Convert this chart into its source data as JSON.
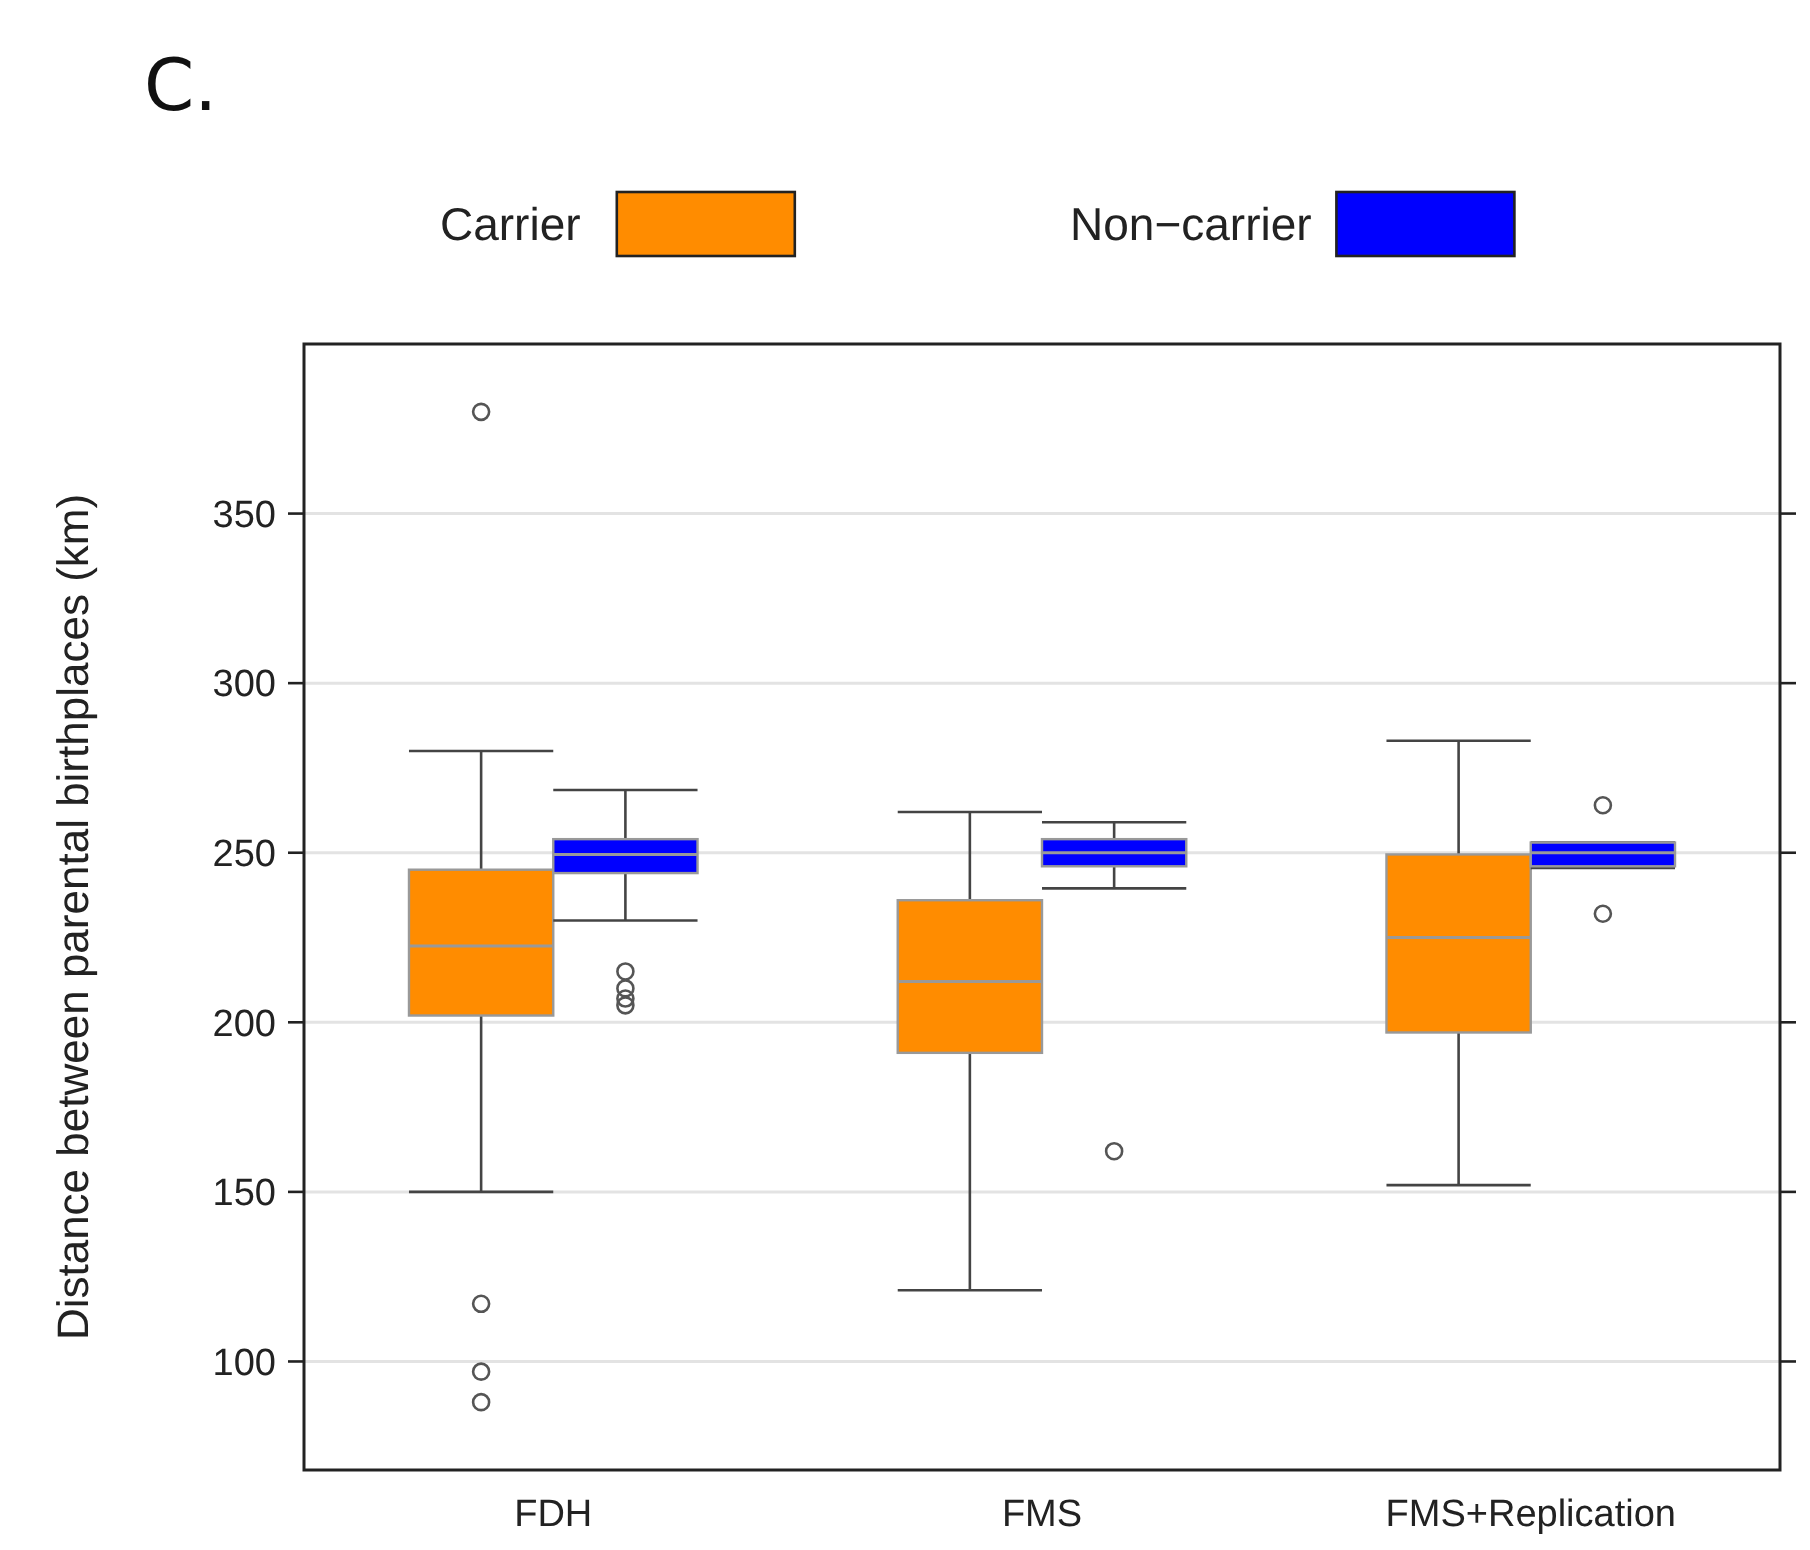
{
  "chart_data": {
    "type": "box",
    "title": "C.",
    "ylabel": "Distance between parental birthplaces (km)",
    "categories": [
      "FDH",
      "FMS",
      "FMS+Replication"
    ],
    "ylim": [
      68,
      400
    ],
    "yticks": [
      100,
      150,
      200,
      250,
      300,
      350
    ],
    "grid": "y",
    "legend": "top",
    "series": [
      {
        "name": "Carrier",
        "color": "#ff8c00",
        "boxes": [
          {
            "low": 150,
            "q1": 202,
            "median": 222.5,
            "q3": 245,
            "high": 280,
            "outliers": [
              380,
              117,
              97,
              88
            ]
          },
          {
            "low": 121,
            "q1": 191,
            "median": 212,
            "q3": 236,
            "high": 262
          },
          {
            "low": 152,
            "q1": 197,
            "median": 225,
            "q3": 249.5,
            "high": 283
          }
        ]
      },
      {
        "name": "Non−carrier",
        "color": "#0000ff",
        "boxes": [
          {
            "low": 230,
            "q1": 244,
            "median": 249.5,
            "q3": 254,
            "high": 268.5,
            "outliers": [
              215,
              210,
              207,
              205
            ]
          },
          {
            "low": 239.5,
            "q1": 246,
            "median": 250,
            "q3": 254,
            "high": 259,
            "outliers": [
              162
            ]
          },
          {
            "low": 245.5,
            "q1": 246,
            "median": 250,
            "q3": 253,
            "high": 253,
            "outliers": [
              264,
              232
            ]
          }
        ]
      }
    ]
  }
}
